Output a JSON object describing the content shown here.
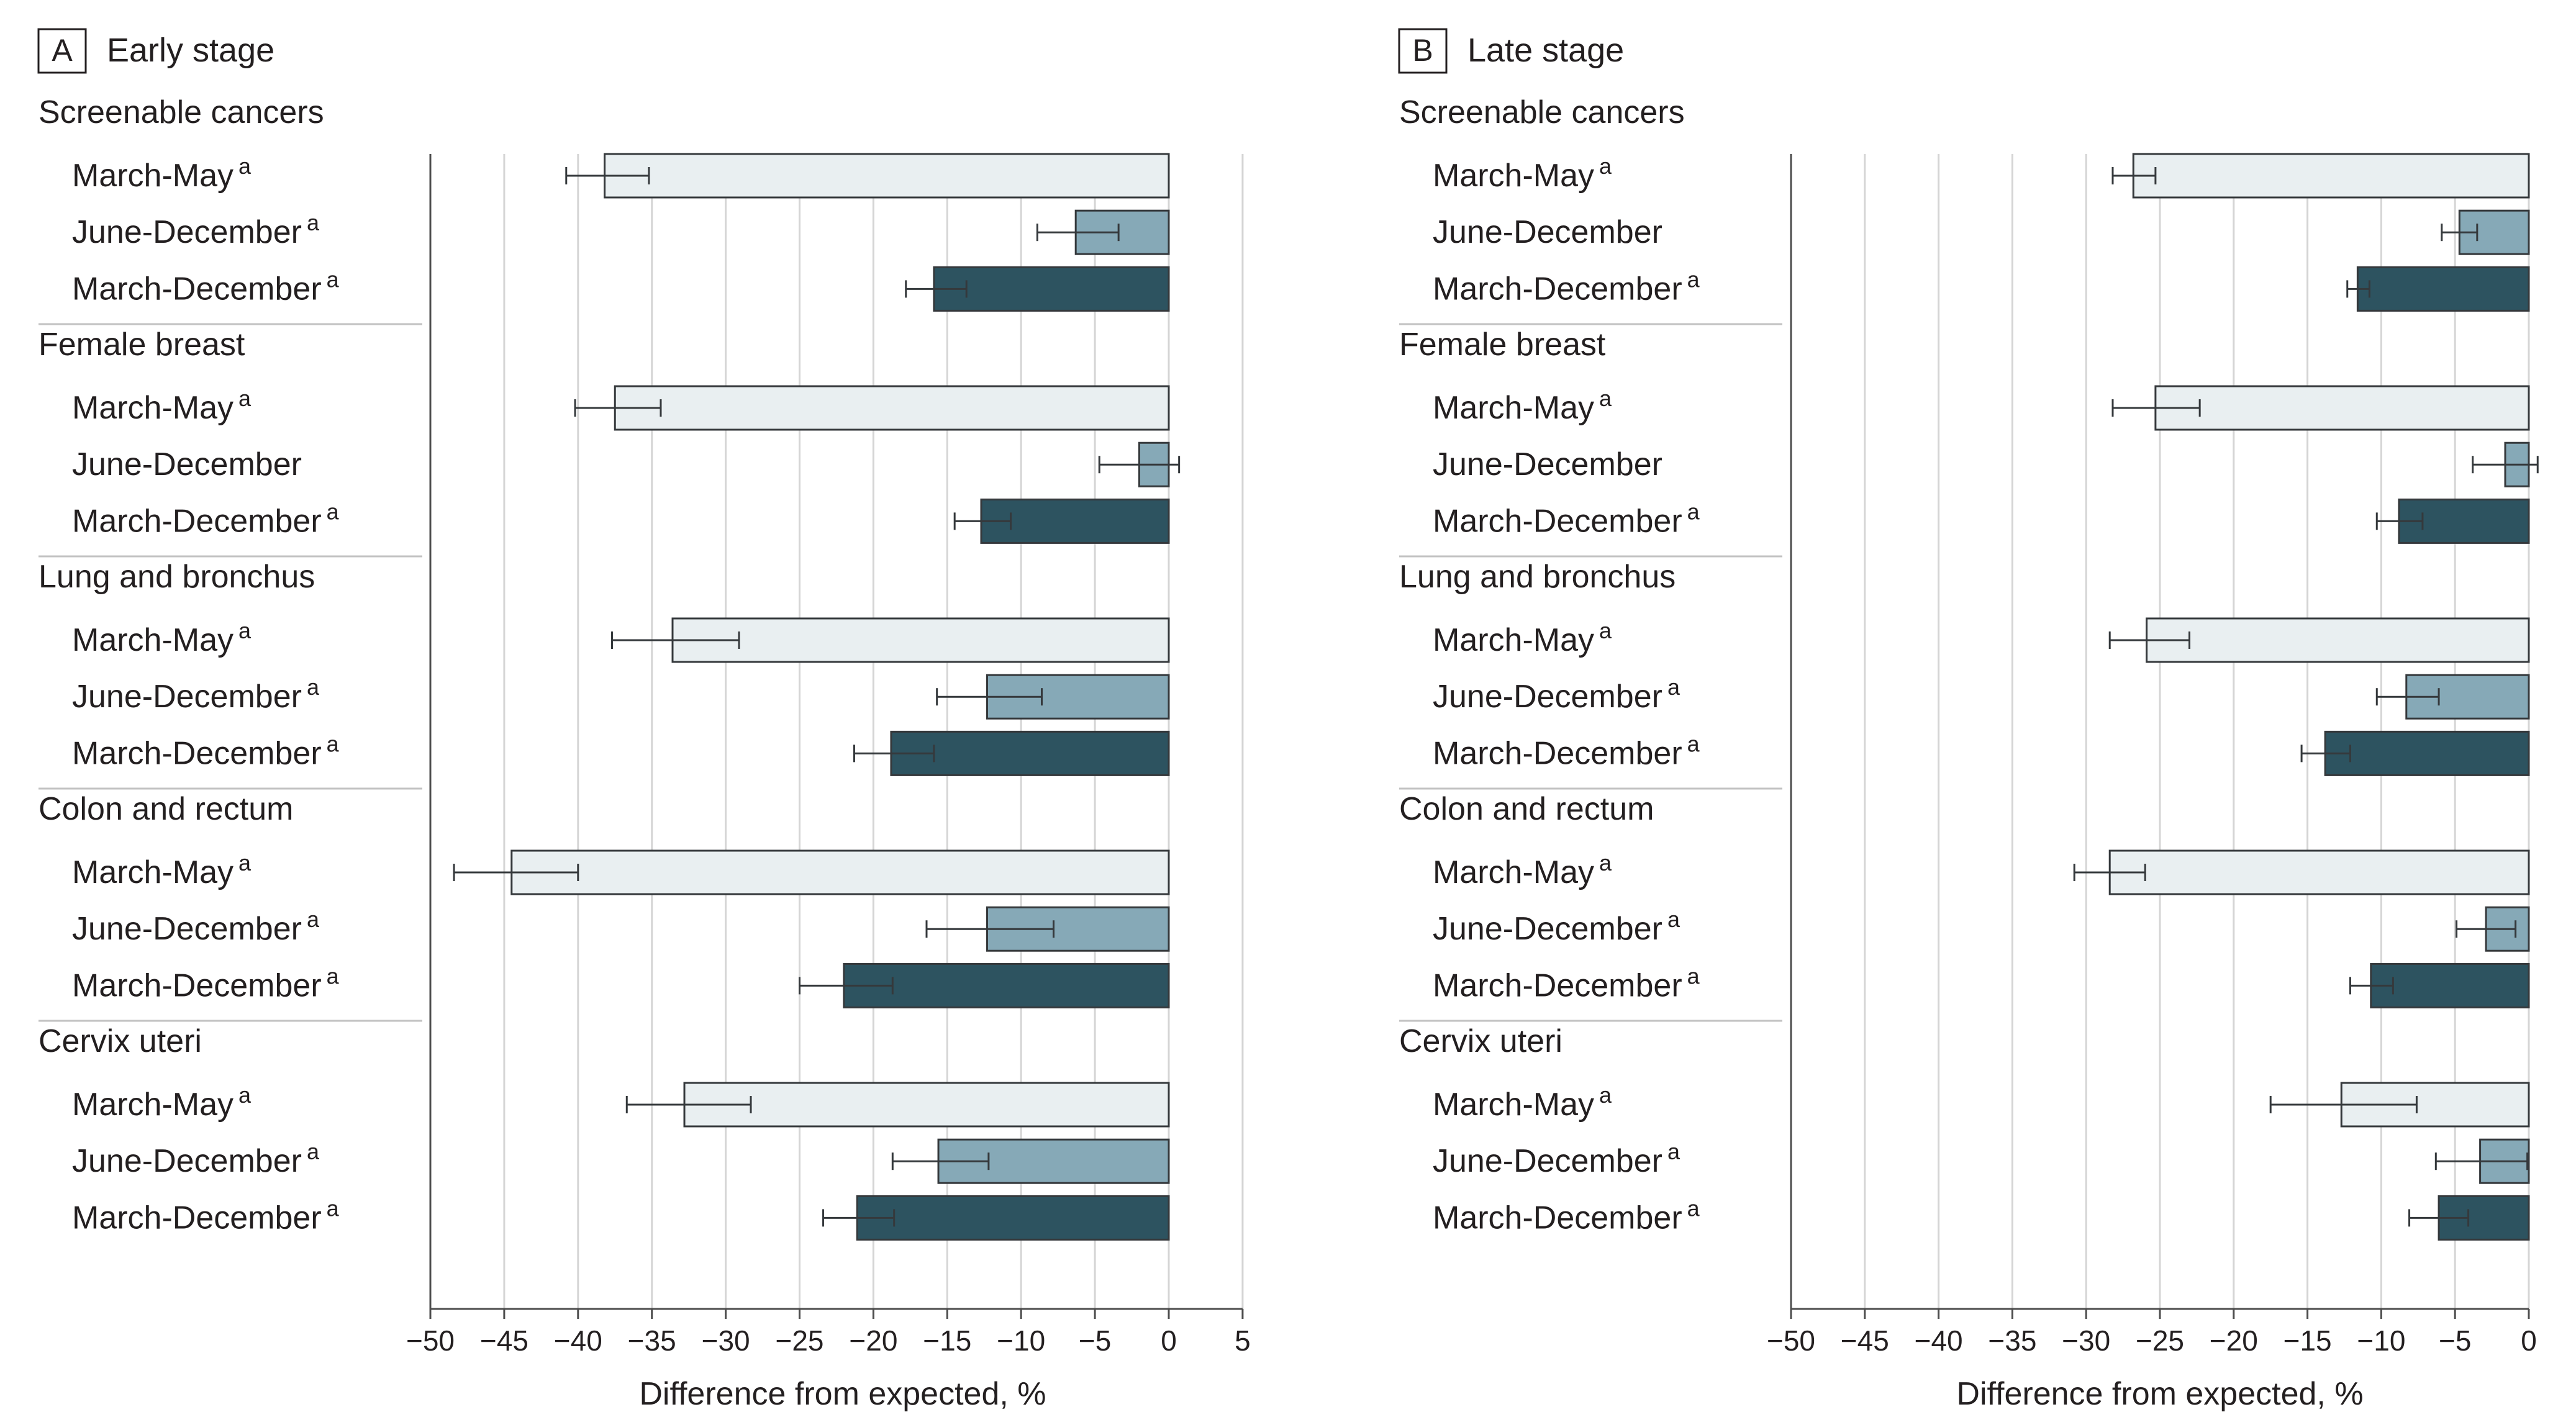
{
  "chart_data": [
    {
      "type": "bar",
      "panel_letter": "A",
      "title": "Early stage",
      "xlabel": "Difference from expected, %",
      "xlim": [
        -50,
        5
      ],
      "xticks": [
        -50,
        -45,
        -40,
        -35,
        -30,
        -25,
        -20,
        -15,
        -10,
        -5,
        0,
        5
      ],
      "xtick_labels": [
        "−50",
        "−45",
        "−40",
        "−35",
        "−30",
        "−25",
        "−20",
        "−15",
        "−10",
        "−5",
        "0",
        "5"
      ],
      "grid": "vertical",
      "groups": [
        {
          "name": "Screenable cancers",
          "rows": [
            {
              "label": "March-May",
              "sup": "a",
              "value": -38.2,
              "ci": [
                -40.8,
                -35.2
              ]
            },
            {
              "label": "June-December",
              "sup": "a",
              "value": -6.3,
              "ci": [
                -8.9,
                -3.4
              ]
            },
            {
              "label": "March-December",
              "sup": "a",
              "value": -15.9,
              "ci": [
                -17.8,
                -13.7
              ]
            }
          ]
        },
        {
          "name": "Female breast",
          "rows": [
            {
              "label": "March-May",
              "sup": "a",
              "value": -37.5,
              "ci": [
                -40.2,
                -34.4
              ]
            },
            {
              "label": "June-December",
              "sup": "",
              "value": -2.0,
              "ci": [
                -4.7,
                0.7
              ]
            },
            {
              "label": "March-December",
              "sup": "a",
              "value": -12.7,
              "ci": [
                -14.5,
                -10.7
              ]
            }
          ]
        },
        {
          "name": "Lung and bronchus",
          "rows": [
            {
              "label": "March-May",
              "sup": "a",
              "value": -33.6,
              "ci": [
                -37.7,
                -29.1
              ]
            },
            {
              "label": "June-December",
              "sup": "a",
              "value": -12.3,
              "ci": [
                -15.7,
                -8.6
              ]
            },
            {
              "label": "March-December",
              "sup": "a",
              "value": -18.8,
              "ci": [
                -21.3,
                -15.9
              ]
            }
          ]
        },
        {
          "name": "Colon and rectum",
          "rows": [
            {
              "label": "March-May",
              "sup": "a",
              "value": -44.5,
              "ci": [
                -48.4,
                -40.0
              ]
            },
            {
              "label": "June-December",
              "sup": "a",
              "value": -12.3,
              "ci": [
                -16.4,
                -7.8
              ]
            },
            {
              "label": "March-December",
              "sup": "a",
              "value": -22.0,
              "ci": [
                -25.0,
                -18.7
              ]
            }
          ]
        },
        {
          "name": "Cervix uteri",
          "rows": [
            {
              "label": "March-May",
              "sup": "a",
              "value": -32.8,
              "ci": [
                -36.7,
                -28.3
              ]
            },
            {
              "label": "June-December",
              "sup": "a",
              "value": -15.6,
              "ci": [
                -18.7,
                -12.2
              ]
            },
            {
              "label": "March-December",
              "sup": "a",
              "value": -21.1,
              "ci": [
                -23.4,
                -18.6
              ]
            }
          ]
        }
      ]
    },
    {
      "type": "bar",
      "panel_letter": "B",
      "title": "Late stage",
      "xlabel": "Difference from expected, %",
      "xlim": [
        -50,
        0
      ],
      "xticks": [
        -50,
        -45,
        -40,
        -35,
        -30,
        -25,
        -20,
        -15,
        -10,
        -5,
        0
      ],
      "xtick_labels": [
        "−50",
        "−45",
        "−40",
        "−35",
        "−30",
        "−25",
        "−20",
        "−15",
        "−10",
        "−5",
        "0"
      ],
      "grid": "vertical",
      "groups": [
        {
          "name": "Screenable cancers",
          "rows": [
            {
              "label": "March-May",
              "sup": "a",
              "value": -26.8,
              "ci": [
                -28.2,
                -25.3
              ]
            },
            {
              "label": "June-December",
              "sup": "",
              "value": -4.7,
              "ci": [
                -5.9,
                -3.5
              ]
            },
            {
              "label": "March-December",
              "sup": "a",
              "value": -11.6,
              "ci": [
                -12.3,
                -10.8
              ]
            }
          ]
        },
        {
          "name": "Female breast",
          "rows": [
            {
              "label": "March-May",
              "sup": "a",
              "value": -25.3,
              "ci": [
                -28.2,
                -22.3
              ]
            },
            {
              "label": "June-December",
              "sup": "",
              "value": -1.6,
              "ci": [
                -3.8,
                0.6
              ]
            },
            {
              "label": "March-December",
              "sup": "a",
              "value": -8.8,
              "ci": [
                -10.3,
                -7.2
              ]
            }
          ]
        },
        {
          "name": "Lung and bronchus",
          "rows": [
            {
              "label": "March-May",
              "sup": "a",
              "value": -25.9,
              "ci": [
                -28.4,
                -23.0
              ]
            },
            {
              "label": "June-December",
              "sup": "a",
              "value": -8.3,
              "ci": [
                -10.3,
                -6.1
              ]
            },
            {
              "label": "March-December",
              "sup": "a",
              "value": -13.8,
              "ci": [
                -15.4,
                -12.1
              ]
            }
          ]
        },
        {
          "name": "Colon and rectum",
          "rows": [
            {
              "label": "March-May",
              "sup": "a",
              "value": -28.4,
              "ci": [
                -30.8,
                -26.0
              ]
            },
            {
              "label": "June-December",
              "sup": "a",
              "value": -2.9,
              "ci": [
                -4.9,
                -0.9
              ]
            },
            {
              "label": "March-December",
              "sup": "a",
              "value": -10.7,
              "ci": [
                -12.1,
                -9.2
              ]
            }
          ]
        },
        {
          "name": "Cervix uteri",
          "rows": [
            {
              "label": "March-May",
              "sup": "a",
              "value": -12.7,
              "ci": [
                -17.5,
                -7.6
              ]
            },
            {
              "label": "June-December",
              "sup": "a",
              "value": -3.3,
              "ci": [
                -6.3,
                -0.1
              ]
            },
            {
              "label": "March-December",
              "sup": "a",
              "value": -6.1,
              "ci": [
                -8.1,
                -4.1
              ]
            }
          ]
        }
      ]
    }
  ],
  "colors": {
    "march_may": "#e9eff1",
    "june_december": "#86a9b7",
    "march_december": "#2d5360",
    "bar_outline": "#35393c",
    "axis": "#4d4d4d",
    "grid": "#d5d5d5",
    "separator": "#c2c2c2",
    "text": "#231f20"
  }
}
